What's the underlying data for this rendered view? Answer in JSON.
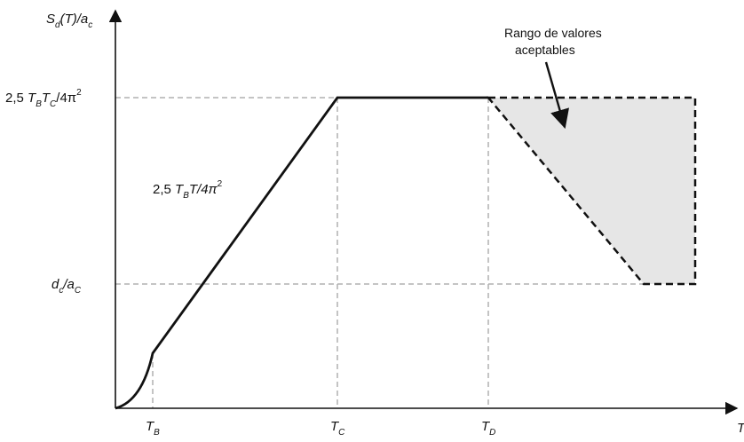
{
  "colors": {
    "axis": "#111111",
    "curve": "#111111",
    "guide": "#b0b0b0",
    "region_fill": "#e6e6e6",
    "region_stroke": "#111111"
  },
  "axes": {
    "y_label": {
      "main": "S",
      "sub": "d",
      "rest": "(T)/a",
      "sub2": "c"
    },
    "x_arrow_label": "T"
  },
  "y_ticks": {
    "plateau": {
      "pre": "2,5 ",
      "t1": "T",
      "s1": "B",
      "t2": "T",
      "s2": "C",
      "post": "/4π",
      "sup": "2"
    },
    "dc_ac": {
      "t1": "d",
      "s1": "c",
      "t2": "/a",
      "s2": "C"
    }
  },
  "x_ticks": {
    "tb": {
      "t": "T",
      "s": "B"
    },
    "tc": {
      "t": "T",
      "s": "C"
    },
    "td": {
      "t": "T",
      "s": "D"
    }
  },
  "curve_label": {
    "pre": "2,5 ",
    "t1": "T",
    "s1": "B",
    "post": "T/4π",
    "sup": "2"
  },
  "annotation": {
    "line1": "Rango de valores",
    "line2": "aceptables"
  },
  "icons": {
    "axis_arrow": "arrow-head-icon"
  }
}
